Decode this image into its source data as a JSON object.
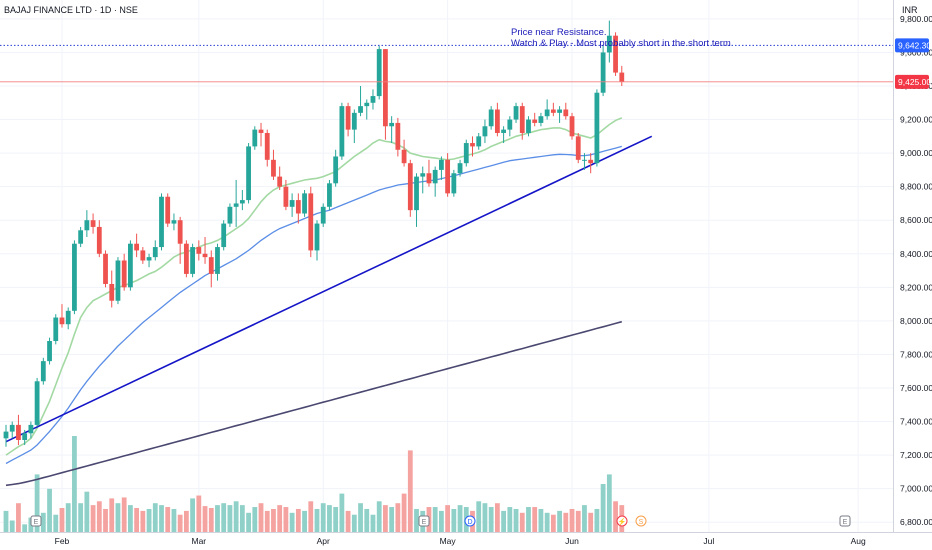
{
  "header": {
    "symbol": "BAJAJ FINANCE LTD · 1D · NSE",
    "currency": "INR"
  },
  "annotation": {
    "line1": "Price near Resistance.",
    "line2": "Watch & Play - Most probably short in the short term"
  },
  "price_tags": {
    "resistance": "9,642.30",
    "last": "9,425.00"
  },
  "colors": {
    "up": "#26a69a",
    "down": "#ef5350",
    "upVol": "#8fd1c8",
    "downVol": "#f5a3a1",
    "sma20": "#a3d9a3",
    "sma50": "#5b8ee6",
    "sma200": "#4a4870",
    "trend": "#1515c8",
    "resistance": "#2a3fd1",
    "lastLine": "#f08080"
  },
  "events": [
    {
      "label": "E",
      "type": "earnings"
    },
    {
      "label": "E",
      "type": "earnings"
    },
    {
      "label": "D",
      "type": "dividend"
    },
    {
      "label": "⚡",
      "type": "split"
    },
    {
      "label": "S",
      "type": "split"
    },
    {
      "label": "E",
      "type": "earnings"
    }
  ],
  "chart_data": {
    "type": "candlestick",
    "title": "BAJAJ FINANCE LTD · 1D · NSE",
    "currency": "INR",
    "ylim": [
      6750,
      9950
    ],
    "y_ticks": [
      "9,800.00",
      "9,600.00",
      "9,400.00",
      "9,200.00",
      "9,000.00",
      "8,800.00",
      "8,600.00",
      "8,400.00",
      "8,200.00",
      "8,000.00",
      "7,800.00",
      "7,600.00",
      "7,400.00",
      "7,200.00",
      "7,000.00",
      "6,800.00"
    ],
    "x_ticks": [
      "Feb",
      "Mar",
      "Apr",
      "May",
      "Jun",
      "Jul",
      "Aug"
    ],
    "resistance_level": 9642.3,
    "last_price": 9425.0,
    "candles": [
      [
        7300,
        7380,
        7250,
        7340
      ],
      [
        7340,
        7400,
        7300,
        7380
      ],
      [
        7380,
        7440,
        7260,
        7290
      ],
      [
        7290,
        7350,
        7260,
        7330
      ],
      [
        7330,
        7400,
        7300,
        7380
      ],
      [
        7380,
        7660,
        7370,
        7640
      ],
      [
        7640,
        7780,
        7620,
        7760
      ],
      [
        7760,
        7900,
        7740,
        7880
      ],
      [
        7880,
        8040,
        7860,
        8020
      ],
      [
        8020,
        8100,
        7960,
        7980
      ],
      [
        7980,
        8080,
        7950,
        8060
      ],
      [
        8060,
        8480,
        8040,
        8460
      ],
      [
        8460,
        8560,
        8440,
        8540
      ],
      [
        8540,
        8660,
        8500,
        8600
      ],
      [
        8600,
        8640,
        8520,
        8560
      ],
      [
        8560,
        8600,
        8380,
        8400
      ],
      [
        8400,
        8420,
        8200,
        8220
      ],
      [
        8220,
        8300,
        8080,
        8120
      ],
      [
        8120,
        8380,
        8100,
        8360
      ],
      [
        8360,
        8400,
        8180,
        8200
      ],
      [
        8200,
        8480,
        8180,
        8460
      ],
      [
        8460,
        8520,
        8380,
        8420
      ],
      [
        8420,
        8440,
        8340,
        8360
      ],
      [
        8360,
        8400,
        8320,
        8380
      ],
      [
        8380,
        8480,
        8360,
        8440
      ],
      [
        8440,
        8760,
        8420,
        8740
      ],
      [
        8740,
        8760,
        8560,
        8580
      ],
      [
        8580,
        8640,
        8540,
        8600
      ],
      [
        8600,
        8620,
        8340,
        8460
      ],
      [
        8460,
        8480,
        8260,
        8280
      ],
      [
        8280,
        8460,
        8260,
        8440
      ],
      [
        8440,
        8480,
        8360,
        8400
      ],
      [
        8400,
        8500,
        8340,
        8380
      ],
      [
        8380,
        8420,
        8200,
        8280
      ],
      [
        8280,
        8460,
        8240,
        8440
      ],
      [
        8440,
        8600,
        8420,
        8580
      ],
      [
        8580,
        8700,
        8560,
        8680
      ],
      [
        8680,
        8840,
        8560,
        8700
      ],
      [
        8700,
        8780,
        8660,
        8720
      ],
      [
        8720,
        9060,
        8700,
        9040
      ],
      [
        9040,
        9160,
        9020,
        9140
      ],
      [
        9140,
        9180,
        9040,
        9120
      ],
      [
        9120,
        9140,
        8920,
        8960
      ],
      [
        8960,
        9020,
        8840,
        8860
      ],
      [
        8860,
        8920,
        8780,
        8800
      ],
      [
        8800,
        8840,
        8660,
        8680
      ],
      [
        8680,
        8760,
        8620,
        8720
      ],
      [
        8720,
        8760,
        8580,
        8640
      ],
      [
        8640,
        8780,
        8620,
        8760
      ],
      [
        8760,
        8800,
        8380,
        8420
      ],
      [
        8420,
        8600,
        8360,
        8580
      ],
      [
        8580,
        8700,
        8560,
        8680
      ],
      [
        8680,
        8840,
        8660,
        8820
      ],
      [
        8820,
        9020,
        8800,
        8980
      ],
      [
        8980,
        9300,
        8960,
        9280
      ],
      [
        9280,
        9300,
        9100,
        9140
      ],
      [
        9140,
        9260,
        9060,
        9240
      ],
      [
        9240,
        9400,
        9220,
        9280
      ],
      [
        9280,
        9320,
        9200,
        9300
      ],
      [
        9300,
        9380,
        9260,
        9340
      ],
      [
        9340,
        9640,
        9320,
        9620
      ],
      [
        9620,
        9620,
        9080,
        9160
      ],
      [
        9160,
        9220,
        9060,
        9180
      ],
      [
        9180,
        9210,
        8980,
        9020
      ],
      [
        9020,
        9080,
        8920,
        8940
      ],
      [
        8940,
        8960,
        8620,
        8660
      ],
      [
        8660,
        8880,
        8560,
        8860
      ],
      [
        8860,
        8920,
        8760,
        8880
      ],
      [
        8880,
        8960,
        8800,
        8820
      ],
      [
        8820,
        8920,
        8740,
        8900
      ],
      [
        8900,
        8980,
        8840,
        8960
      ],
      [
        8960,
        9000,
        8740,
        8760
      ],
      [
        8760,
        8900,
        8740,
        8880
      ],
      [
        8880,
        8960,
        8860,
        8940
      ],
      [
        8940,
        9080,
        8920,
        9060
      ],
      [
        9060,
        9100,
        8980,
        9040
      ],
      [
        9040,
        9120,
        9020,
        9100
      ],
      [
        9100,
        9200,
        9060,
        9160
      ],
      [
        9160,
        9280,
        9140,
        9260
      ],
      [
        9260,
        9300,
        9100,
        9120
      ],
      [
        9120,
        9160,
        9060,
        9140
      ],
      [
        9140,
        9220,
        9100,
        9200
      ],
      [
        9200,
        9300,
        9180,
        9280
      ],
      [
        9280,
        9300,
        9080,
        9120
      ],
      [
        9120,
        9220,
        9100,
        9200
      ],
      [
        9200,
        9240,
        9160,
        9180
      ],
      [
        9180,
        9240,
        9160,
        9220
      ],
      [
        9220,
        9320,
        9200,
        9260
      ],
      [
        9260,
        9300,
        9220,
        9240
      ],
      [
        9240,
        9280,
        9180,
        9260
      ],
      [
        9260,
        9300,
        9200,
        9220
      ],
      [
        9220,
        9240,
        9080,
        9100
      ],
      [
        9100,
        9120,
        8940,
        8960
      ],
      [
        8960,
        9000,
        8900,
        8960
      ],
      [
        8960,
        9000,
        8880,
        8940
      ],
      [
        8940,
        9380,
        8920,
        9360
      ],
      [
        9360,
        9640,
        9340,
        9600
      ],
      [
        9600,
        9790,
        9540,
        9700
      ],
      [
        9700,
        9720,
        9460,
        9480
      ],
      [
        9480,
        9520,
        9400,
        9425
      ]
    ],
    "volume_scale": [
      0,
      100
    ],
    "volumes": [
      22,
      12,
      30,
      8,
      15,
      60,
      20,
      45,
      18,
      25,
      30,
      100,
      30,
      42,
      28,
      32,
      24,
      35,
      30,
      36,
      28,
      25,
      22,
      24,
      30,
      28,
      26,
      24,
      18,
      22,
      35,
      38,
      27,
      25,
      28,
      30,
      28,
      32,
      28,
      20,
      26,
      30,
      22,
      24,
      28,
      26,
      20,
      24,
      22,
      32,
      24,
      30,
      28,
      26,
      40,
      22,
      18,
      30,
      24,
      18,
      32,
      28,
      26,
      30,
      40,
      85,
      24,
      22,
      26,
      26,
      22,
      28,
      24,
      28,
      26,
      22,
      32,
      30,
      26,
      30,
      22,
      26,
      24,
      20,
      26,
      26,
      24,
      20,
      18,
      22,
      20,
      24,
      22,
      28,
      20,
      24,
      50,
      60,
      32,
      28
    ],
    "series": [
      {
        "name": "",
        "kind": "sma20",
        "values": [
          7200,
          7225,
          7250,
          7270,
          7300,
          7360,
          7440,
          7520,
          7620,
          7720,
          7810,
          7920,
          8020,
          8080,
          8120,
          8140,
          8160,
          8180,
          8200,
          8210,
          8225,
          8240,
          8260,
          8280,
          8295,
          8320,
          8350,
          8380,
          8400,
          8410,
          8425,
          8440,
          8455,
          8465,
          8480,
          8500,
          8525,
          8550,
          8575,
          8610,
          8660,
          8710,
          8750,
          8780,
          8800,
          8810,
          8820,
          8830,
          8840,
          8845,
          8850,
          8860,
          8875,
          8890,
          8920,
          8950,
          8980,
          9005,
          9030,
          9060,
          9080,
          9070,
          9065,
          9050,
          9030,
          9000,
          8990,
          8980,
          8975,
          8970,
          8965,
          8960,
          8965,
          8975,
          8985,
          8995,
          9005,
          9020,
          9040,
          9055,
          9070,
          9085,
          9100,
          9110,
          9120,
          9130,
          9140,
          9145,
          9150,
          9150,
          9140,
          9120,
          9110,
          9100,
          9090,
          9110,
          9140,
          9170,
          9195,
          9210
        ]
      },
      {
        "name": "",
        "kind": "sma50",
        "values": [
          7150,
          7170,
          7190,
          7210,
          7230,
          7260,
          7300,
          7340,
          7385,
          7430,
          7480,
          7535,
          7590,
          7640,
          7685,
          7730,
          7770,
          7810,
          7850,
          7885,
          7920,
          7955,
          7990,
          8020,
          8050,
          8080,
          8110,
          8140,
          8170,
          8195,
          8220,
          8245,
          8270,
          8290,
          8310,
          8330,
          8350,
          8370,
          8395,
          8420,
          8450,
          8480,
          8505,
          8530,
          8550,
          8565,
          8580,
          8595,
          8610,
          8625,
          8640,
          8650,
          8660,
          8675,
          8690,
          8705,
          8720,
          8735,
          8750,
          8765,
          8780,
          8790,
          8800,
          8810,
          8815,
          8820,
          8825,
          8830,
          8835,
          8840,
          8848,
          8856,
          8865,
          8875,
          8885,
          8895,
          8905,
          8915,
          8925,
          8935,
          8945,
          8955,
          8960,
          8965,
          8970,
          8975,
          8980,
          8985,
          8990,
          8993,
          8992,
          8990,
          8985,
          8985,
          8990,
          9000,
          9010,
          9020,
          9030,
          9040
        ]
      },
      {
        "name": "",
        "kind": "sma200",
        "values": [
          7020,
          7025,
          7030,
          7038,
          7046,
          7055,
          7065,
          7075,
          7085,
          7095,
          7105,
          7115,
          7125,
          7135,
          7145,
          7155,
          7165,
          7175,
          7185,
          7195,
          7205,
          7215,
          7225,
          7235,
          7245,
          7255,
          7265,
          7275,
          7285,
          7295,
          7305,
          7315,
          7325,
          7335,
          7345,
          7355,
          7365,
          7375,
          7385,
          7395,
          7405,
          7415,
          7425,
          7435,
          7445,
          7455,
          7465,
          7475,
          7485,
          7495,
          7505,
          7515,
          7525,
          7535,
          7545,
          7555,
          7565,
          7575,
          7585,
          7595,
          7605,
          7615,
          7625,
          7635,
          7645,
          7655,
          7665,
          7675,
          7685,
          7695,
          7705,
          7715,
          7725,
          7735,
          7745,
          7755,
          7765,
          7775,
          7785,
          7795,
          7805,
          7815,
          7825,
          7835,
          7845,
          7855,
          7865,
          7875,
          7885,
          7895,
          7905,
          7915,
          7925,
          7935,
          7945,
          7955,
          7965,
          7975,
          7985,
          7995
        ]
      }
    ],
    "trendline": {
      "from": [
        0,
        7280
      ],
      "to": [
        99,
        9060
      ]
    }
  }
}
